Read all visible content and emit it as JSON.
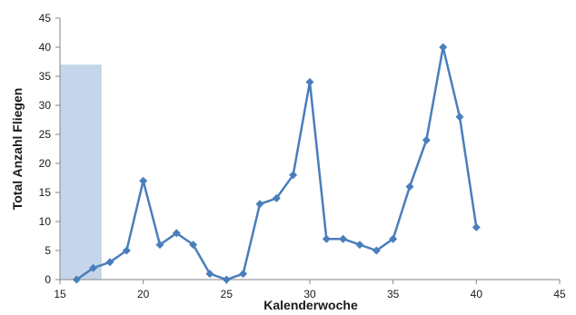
{
  "chart_data": {
    "type": "line",
    "title": "",
    "xlabel": "Kalenderwoche",
    "ylabel": "Total Anzahl Fliegen",
    "xlim": [
      15,
      45
    ],
    "ylim": [
      0,
      45
    ],
    "x_ticks": [
      "15",
      "20",
      "25",
      "30",
      "35",
      "40",
      "45"
    ],
    "y_ticks": [
      "0",
      "5",
      "10",
      "15",
      "20",
      "25",
      "30",
      "35",
      "40",
      "45"
    ],
    "grid": false,
    "legend": "none",
    "highlight_region": {
      "x_start": 15,
      "x_end": 17.5,
      "y_top": 37,
      "color": "#c5d5ea"
    },
    "series": [
      {
        "marker": "diamond",
        "color": "#4a7ebb",
        "x": [
          16,
          17,
          18,
          19,
          20,
          21,
          22,
          23,
          24,
          25,
          26,
          27,
          28,
          29,
          30,
          31,
          32,
          33,
          34,
          35,
          36,
          37,
          38,
          39,
          40
        ],
        "y": [
          0,
          2,
          3,
          5,
          17,
          6,
          8,
          6,
          1,
          0,
          1,
          13,
          14,
          18,
          34,
          7,
          7,
          6,
          5,
          7,
          16,
          24,
          40,
          28,
          9
        ]
      }
    ],
    "axis_color": "#868686"
  }
}
